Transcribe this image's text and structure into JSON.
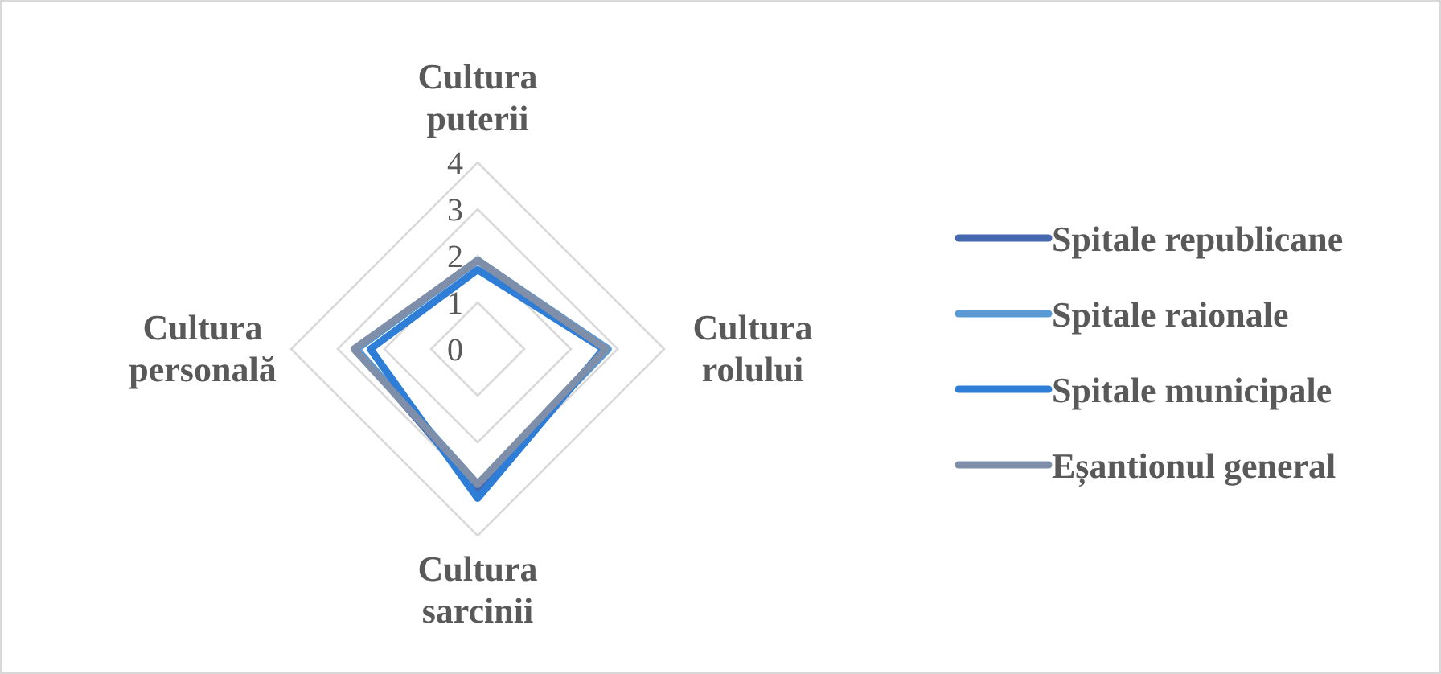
{
  "chart_data": {
    "type": "radar",
    "categories": [
      "Cultura puterii",
      "Cultura rolului",
      "Cultura sarcinii",
      "Cultura personală"
    ],
    "series": [
      {
        "name": "Spitale republicane",
        "color": "#4468b0",
        "values": [
          1.9,
          2.75,
          3.0,
          2.6
        ]
      },
      {
        "name": "Spitale raionale",
        "color": "#5b9bd5",
        "values": [
          1.9,
          2.8,
          2.9,
          2.6
        ]
      },
      {
        "name": "Spitale municipale",
        "color": "#2e7dd6",
        "values": [
          1.7,
          2.7,
          3.2,
          2.3
        ]
      },
      {
        "name": "Eșantionul general",
        "color": "#7f8fa9",
        "values": [
          1.9,
          2.75,
          2.9,
          2.65
        ]
      }
    ],
    "ylim": [
      0,
      4
    ],
    "yticks": [
      0,
      1,
      2,
      3,
      4
    ],
    "grid": true,
    "legend": "right"
  }
}
